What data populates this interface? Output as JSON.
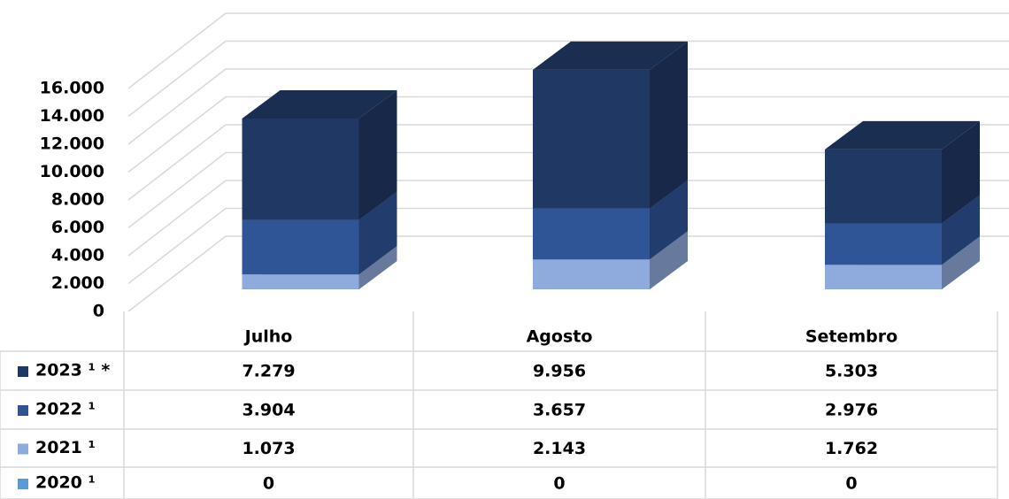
{
  "chart_data": {
    "type": "bar3d_stacked",
    "categories": [
      "Julho",
      "Agosto",
      "Setembro"
    ],
    "series": [
      {
        "name": "2023 ¹ *",
        "color": "#203864",
        "values": [
          7279,
          9956,
          5303
        ],
        "value_labels": [
          "7.279",
          "9.956",
          "5.303"
        ]
      },
      {
        "name": "2022 ¹",
        "color": "#2f5597",
        "values": [
          3904,
          3657,
          2976
        ],
        "value_labels": [
          "3.904",
          "3.657",
          "2.976"
        ]
      },
      {
        "name": "2021 ¹",
        "color": "#8faadc",
        "values": [
          1073,
          2143,
          1762
        ],
        "value_labels": [
          "1.073",
          "2.143",
          "1.762"
        ]
      },
      {
        "name": "2020 ¹",
        "color": "#5b9bd5",
        "values": [
          0,
          0,
          0
        ]
      }
    ],
    "ylim": [
      0,
      16000
    ],
    "yticks": [
      0,
      {
        "value": 2000,
        "label": "2.000"
      },
      {
        "value": 4000,
        "label": "4.000"
      },
      {
        "value": 6000,
        "label": "6.000"
      },
      {
        "value": 8000,
        "label": "8.000"
      },
      {
        "value": 10000,
        "label": "10.000"
      },
      {
        "value": 12000,
        "label": "12.000"
      },
      {
        "value": 14000,
        "label": "14.000"
      },
      {
        "value": 16000,
        "label": "16.000"
      }
    ],
    "grid": true
  }
}
